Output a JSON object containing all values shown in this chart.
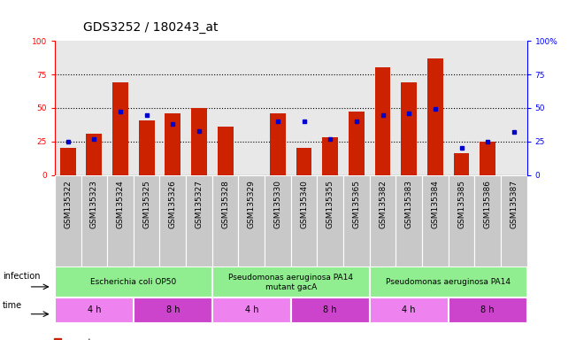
{
  "title": "GDS3252 / 180243_at",
  "samples": [
    "GSM135322",
    "GSM135323",
    "GSM135324",
    "GSM135325",
    "GSM135326",
    "GSM135327",
    "GSM135328",
    "GSM135329",
    "GSM135330",
    "GSM135340",
    "GSM135355",
    "GSM135365",
    "GSM135382",
    "GSM135383",
    "GSM135384",
    "GSM135385",
    "GSM135386",
    "GSM135387"
  ],
  "count_values": [
    20,
    31,
    69,
    41,
    46,
    50,
    36,
    0,
    46,
    20,
    28,
    47,
    80,
    69,
    87,
    16,
    25,
    0
  ],
  "percentile_values": [
    25,
    27,
    47,
    45,
    38,
    33,
    0,
    0,
    40,
    40,
    27,
    40,
    45,
    46,
    49,
    20,
    25,
    32
  ],
  "infection_groups": [
    {
      "label": "Escherichia coli OP50",
      "start": 0,
      "end": 6
    },
    {
      "label": "Pseudomonas aeruginosa PA14\nmutant gacA",
      "start": 6,
      "end": 12
    },
    {
      "label": "Pseudomonas aeruginosa PA14",
      "start": 12,
      "end": 18
    }
  ],
  "time_groups": [
    {
      "label": "4 h",
      "start": 0,
      "end": 3,
      "light": true
    },
    {
      "label": "8 h",
      "start": 3,
      "end": 6,
      "light": false
    },
    {
      "label": "4 h",
      "start": 6,
      "end": 9,
      "light": true
    },
    {
      "label": "8 h",
      "start": 9,
      "end": 12,
      "light": false
    },
    {
      "label": "4 h",
      "start": 12,
      "end": 15,
      "light": true
    },
    {
      "label": "8 h",
      "start": 15,
      "end": 18,
      "light": false
    }
  ],
  "bar_color": "#CC2200",
  "blue_color": "#0000CC",
  "infection_color": "#90EE90",
  "time_color_light": "#EE82EE",
  "time_color_dark": "#CC44CC",
  "xtick_bg": "#C8C8C8",
  "ylim": [
    0,
    100
  ],
  "yticks": [
    0,
    25,
    50,
    75,
    100
  ],
  "title_fontsize": 10,
  "tick_fontsize": 6.5,
  "annot_fontsize": 7,
  "legend_fontsize": 7.5
}
